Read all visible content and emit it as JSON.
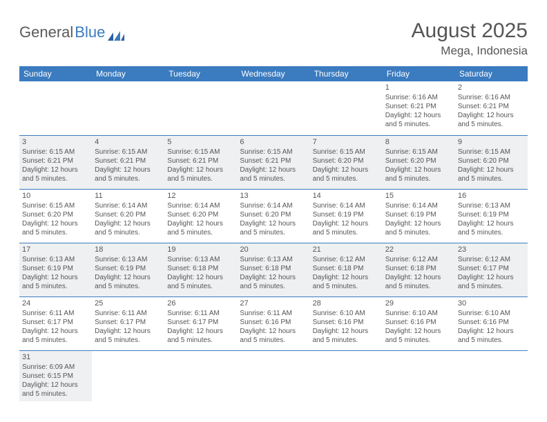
{
  "logo": {
    "part1": "General",
    "part2": "Blue"
  },
  "title": "August 2025",
  "subtitle": "Mega, Indonesia",
  "colors": {
    "header_bg": "#3b7bbf",
    "header_text": "#ffffff",
    "shaded_row_bg": "#eef0f2",
    "row_divider": "#3b7bbf",
    "text": "#555555"
  },
  "day_headers": [
    "Sunday",
    "Monday",
    "Tuesday",
    "Wednesday",
    "Thursday",
    "Friday",
    "Saturday"
  ],
  "weeks": [
    {
      "shaded": false,
      "days": [
        null,
        null,
        null,
        null,
        null,
        {
          "n": "1",
          "sunrise": "Sunrise: 6:16 AM",
          "sunset": "Sunset: 6:21 PM",
          "daylight": "Daylight: 12 hours and 5 minutes."
        },
        {
          "n": "2",
          "sunrise": "Sunrise: 6:16 AM",
          "sunset": "Sunset: 6:21 PM",
          "daylight": "Daylight: 12 hours and 5 minutes."
        }
      ]
    },
    {
      "shaded": true,
      "days": [
        {
          "n": "3",
          "sunrise": "Sunrise: 6:15 AM",
          "sunset": "Sunset: 6:21 PM",
          "daylight": "Daylight: 12 hours and 5 minutes."
        },
        {
          "n": "4",
          "sunrise": "Sunrise: 6:15 AM",
          "sunset": "Sunset: 6:21 PM",
          "daylight": "Daylight: 12 hours and 5 minutes."
        },
        {
          "n": "5",
          "sunrise": "Sunrise: 6:15 AM",
          "sunset": "Sunset: 6:21 PM",
          "daylight": "Daylight: 12 hours and 5 minutes."
        },
        {
          "n": "6",
          "sunrise": "Sunrise: 6:15 AM",
          "sunset": "Sunset: 6:21 PM",
          "daylight": "Daylight: 12 hours and 5 minutes."
        },
        {
          "n": "7",
          "sunrise": "Sunrise: 6:15 AM",
          "sunset": "Sunset: 6:20 PM",
          "daylight": "Daylight: 12 hours and 5 minutes."
        },
        {
          "n": "8",
          "sunrise": "Sunrise: 6:15 AM",
          "sunset": "Sunset: 6:20 PM",
          "daylight": "Daylight: 12 hours and 5 minutes."
        },
        {
          "n": "9",
          "sunrise": "Sunrise: 6:15 AM",
          "sunset": "Sunset: 6:20 PM",
          "daylight": "Daylight: 12 hours and 5 minutes."
        }
      ]
    },
    {
      "shaded": false,
      "days": [
        {
          "n": "10",
          "sunrise": "Sunrise: 6:15 AM",
          "sunset": "Sunset: 6:20 PM",
          "daylight": "Daylight: 12 hours and 5 minutes."
        },
        {
          "n": "11",
          "sunrise": "Sunrise: 6:14 AM",
          "sunset": "Sunset: 6:20 PM",
          "daylight": "Daylight: 12 hours and 5 minutes."
        },
        {
          "n": "12",
          "sunrise": "Sunrise: 6:14 AM",
          "sunset": "Sunset: 6:20 PM",
          "daylight": "Daylight: 12 hours and 5 minutes."
        },
        {
          "n": "13",
          "sunrise": "Sunrise: 6:14 AM",
          "sunset": "Sunset: 6:20 PM",
          "daylight": "Daylight: 12 hours and 5 minutes."
        },
        {
          "n": "14",
          "sunrise": "Sunrise: 6:14 AM",
          "sunset": "Sunset: 6:19 PM",
          "daylight": "Daylight: 12 hours and 5 minutes."
        },
        {
          "n": "15",
          "sunrise": "Sunrise: 6:14 AM",
          "sunset": "Sunset: 6:19 PM",
          "daylight": "Daylight: 12 hours and 5 minutes."
        },
        {
          "n": "16",
          "sunrise": "Sunrise: 6:13 AM",
          "sunset": "Sunset: 6:19 PM",
          "daylight": "Daylight: 12 hours and 5 minutes."
        }
      ]
    },
    {
      "shaded": true,
      "days": [
        {
          "n": "17",
          "sunrise": "Sunrise: 6:13 AM",
          "sunset": "Sunset: 6:19 PM",
          "daylight": "Daylight: 12 hours and 5 minutes."
        },
        {
          "n": "18",
          "sunrise": "Sunrise: 6:13 AM",
          "sunset": "Sunset: 6:19 PM",
          "daylight": "Daylight: 12 hours and 5 minutes."
        },
        {
          "n": "19",
          "sunrise": "Sunrise: 6:13 AM",
          "sunset": "Sunset: 6:18 PM",
          "daylight": "Daylight: 12 hours and 5 minutes."
        },
        {
          "n": "20",
          "sunrise": "Sunrise: 6:13 AM",
          "sunset": "Sunset: 6:18 PM",
          "daylight": "Daylight: 12 hours and 5 minutes."
        },
        {
          "n": "21",
          "sunrise": "Sunrise: 6:12 AM",
          "sunset": "Sunset: 6:18 PM",
          "daylight": "Daylight: 12 hours and 5 minutes."
        },
        {
          "n": "22",
          "sunrise": "Sunrise: 6:12 AM",
          "sunset": "Sunset: 6:18 PM",
          "daylight": "Daylight: 12 hours and 5 minutes."
        },
        {
          "n": "23",
          "sunrise": "Sunrise: 6:12 AM",
          "sunset": "Sunset: 6:17 PM",
          "daylight": "Daylight: 12 hours and 5 minutes."
        }
      ]
    },
    {
      "shaded": false,
      "days": [
        {
          "n": "24",
          "sunrise": "Sunrise: 6:11 AM",
          "sunset": "Sunset: 6:17 PM",
          "daylight": "Daylight: 12 hours and 5 minutes."
        },
        {
          "n": "25",
          "sunrise": "Sunrise: 6:11 AM",
          "sunset": "Sunset: 6:17 PM",
          "daylight": "Daylight: 12 hours and 5 minutes."
        },
        {
          "n": "26",
          "sunrise": "Sunrise: 6:11 AM",
          "sunset": "Sunset: 6:17 PM",
          "daylight": "Daylight: 12 hours and 5 minutes."
        },
        {
          "n": "27",
          "sunrise": "Sunrise: 6:11 AM",
          "sunset": "Sunset: 6:16 PM",
          "daylight": "Daylight: 12 hours and 5 minutes."
        },
        {
          "n": "28",
          "sunrise": "Sunrise: 6:10 AM",
          "sunset": "Sunset: 6:16 PM",
          "daylight": "Daylight: 12 hours and 5 minutes."
        },
        {
          "n": "29",
          "sunrise": "Sunrise: 6:10 AM",
          "sunset": "Sunset: 6:16 PM",
          "daylight": "Daylight: 12 hours and 5 minutes."
        },
        {
          "n": "30",
          "sunrise": "Sunrise: 6:10 AM",
          "sunset": "Sunset: 6:16 PM",
          "daylight": "Daylight: 12 hours and 5 minutes."
        }
      ]
    },
    {
      "shaded": true,
      "days": [
        {
          "n": "31",
          "sunrise": "Sunrise: 6:09 AM",
          "sunset": "Sunset: 6:15 PM",
          "daylight": "Daylight: 12 hours and 5 minutes."
        },
        null,
        null,
        null,
        null,
        null,
        null
      ]
    }
  ]
}
